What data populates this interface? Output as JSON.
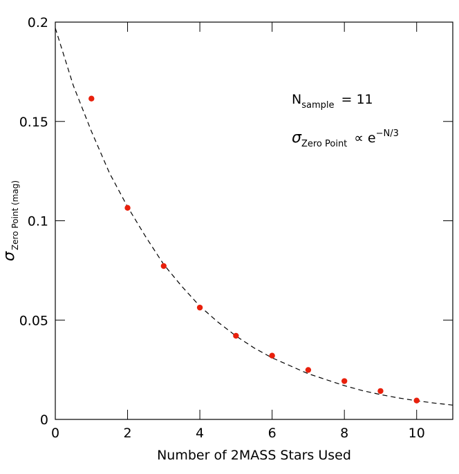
{
  "chart_data": {
    "type": "scatter",
    "xlabel": "Number of 2MASS Stars Used",
    "ylabel": {
      "symbol": "σ",
      "subscript": "Zero Point (mag)"
    },
    "annotations": [
      {
        "text": "N",
        "subscript": "sample",
        "rest": "=  11"
      },
      {
        "text": "σ",
        "subscript": "Zero Point",
        "rest": "∝  e",
        "superscript": "−N/3"
      }
    ],
    "xlim": [
      0,
      11
    ],
    "xticks": [
      0,
      2,
      4,
      6,
      8,
      10
    ],
    "ylim": [
      0,
      0.2
    ],
    "yticks": [
      0,
      0.05,
      0.1,
      0.15,
      0.2
    ],
    "series": [
      {
        "kind": "points",
        "color": "#e8200c",
        "x": [
          1,
          2,
          3,
          4,
          5,
          6,
          7,
          8,
          9,
          10
        ],
        "values": [
          0.1615,
          0.1065,
          0.0772,
          0.0563,
          0.0421,
          0.0321,
          0.0249,
          0.0193,
          0.0143,
          0.0095
        ]
      },
      {
        "kind": "dashed-line",
        "color": "#000000",
        "x": [
          0,
          0.5,
          1,
          1.5,
          2,
          2.5,
          3,
          3.5,
          4,
          4.5,
          5,
          5.5,
          6,
          6.5,
          7,
          7.5,
          8,
          8.5,
          9,
          9.5,
          10,
          10.5,
          11
        ],
        "values": [
          0.197,
          0.168,
          0.145,
          0.124,
          0.107,
          0.092,
          0.078,
          0.067,
          0.057,
          0.049,
          0.042,
          0.036,
          0.031,
          0.027,
          0.023,
          0.02,
          0.017,
          0.0145,
          0.0125,
          0.0108,
          0.0094,
          0.0082,
          0.0072
        ]
      }
    ]
  }
}
